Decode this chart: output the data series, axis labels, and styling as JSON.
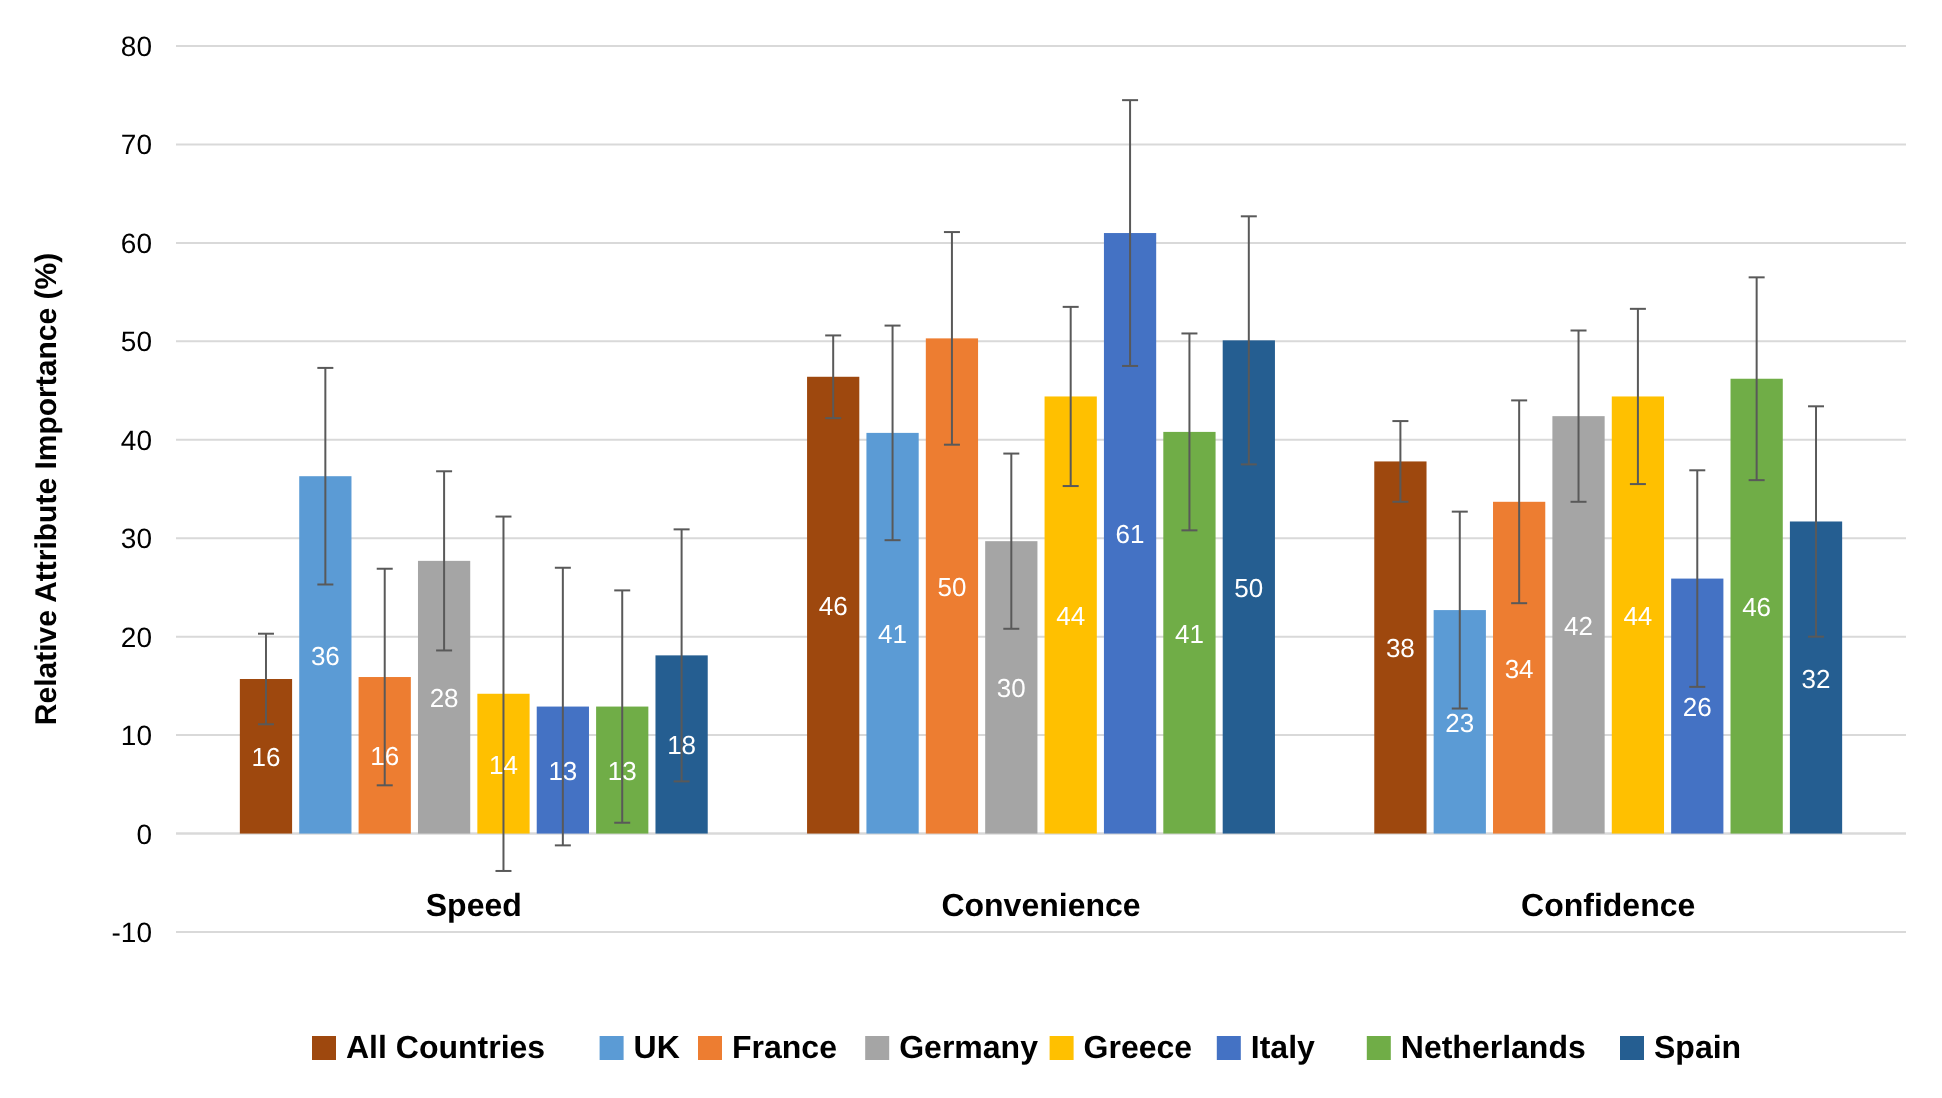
{
  "chart_data": {
    "type": "bar",
    "ylabel": "Relative Attribute Importance (%)",
    "categories": [
      "Speed",
      "Convenience",
      "Confidence"
    ],
    "ylim": [
      -10,
      80
    ],
    "yticks": [
      -10,
      0,
      10,
      20,
      30,
      40,
      50,
      60,
      70,
      80
    ],
    "grid": "y",
    "legend": "bottom",
    "series": [
      {
        "name": "All Countries",
        "color": "#9e480e",
        "values": [
          15.7,
          46.4,
          37.8
        ],
        "errors": [
          4.6,
          4.2,
          4.1
        ],
        "value_labels": [
          "16",
          "46",
          "38"
        ]
      },
      {
        "name": "UK",
        "color": "#5b9bd5",
        "values": [
          36.3,
          40.7,
          22.7
        ],
        "errors": [
          11,
          10.9,
          10
        ],
        "value_labels": [
          "36",
          "41",
          "23"
        ]
      },
      {
        "name": "France",
        "color": "#ed7d31",
        "values": [
          15.9,
          50.3,
          33.7
        ],
        "errors": [
          11,
          10.8,
          10.3
        ],
        "value_labels": [
          "16",
          "50",
          "34"
        ]
      },
      {
        "name": "Germany",
        "color": "#a5a5a5",
        "values": [
          27.7,
          29.7,
          42.4
        ],
        "errors": [
          9.1,
          8.9,
          8.7
        ],
        "value_labels": [
          "28",
          "30",
          "42"
        ]
      },
      {
        "name": "Greece",
        "color": "#ffc000",
        "values": [
          14.2,
          44.4,
          44.4
        ],
        "errors": [
          18,
          9.1,
          8.9
        ],
        "value_labels": [
          "14",
          "44",
          "44"
        ]
      },
      {
        "name": "Italy",
        "color": "#4472c4",
        "values": [
          12.9,
          61,
          25.9
        ],
        "errors": [
          14.1,
          13.5,
          11
        ],
        "value_labels": [
          "13",
          "61",
          "26"
        ]
      },
      {
        "name": "Netherlands",
        "color": "#70ad47",
        "values": [
          12.9,
          40.8,
          46.2
        ],
        "errors": [
          11.8,
          10,
          10.3
        ],
        "value_labels": [
          "13",
          "41",
          "46"
        ]
      },
      {
        "name": "Spain",
        "color": "#255e91",
        "values": [
          18.1,
          50.1,
          31.7
        ],
        "errors": [
          12.8,
          12.6,
          11.7
        ],
        "value_labels": [
          "18",
          "50",
          "32"
        ]
      }
    ]
  }
}
